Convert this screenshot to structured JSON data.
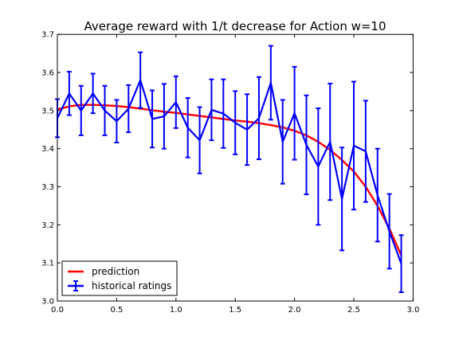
{
  "chart_data": {
    "type": "line",
    "title": "Average reward with 1/t decrease for Action w=10",
    "xlabel": "",
    "ylabel": "",
    "xlim": [
      0.0,
      3.0
    ],
    "ylim": [
      3.0,
      3.7
    ],
    "xticks": [
      0.0,
      0.5,
      1.0,
      1.5,
      2.0,
      2.5,
      3.0
    ],
    "xtick_labels": [
      "0.0",
      "0.5",
      "1.0",
      "1.5",
      "2.0",
      "2.5",
      "3.0"
    ],
    "yticks": [
      3.0,
      3.1,
      3.2,
      3.3,
      3.4,
      3.5,
      3.6,
      3.7
    ],
    "ytick_labels": [
      "3.0",
      "3.1",
      "3.2",
      "3.3",
      "3.4",
      "3.5",
      "3.6",
      "3.7"
    ],
    "grid": false,
    "legend_position": "bottom-left",
    "series": [
      {
        "name": "prediction",
        "kind": "line",
        "color": "#ff0000",
        "x": [
          0.0,
          0.1,
          0.2,
          0.3,
          0.4,
          0.5,
          0.6,
          0.7,
          0.8,
          0.9,
          1.0,
          1.1,
          1.2,
          1.3,
          1.4,
          1.5,
          1.6,
          1.7,
          1.8,
          1.9,
          2.0,
          2.1,
          2.2,
          2.3,
          2.4,
          2.5,
          2.6,
          2.7,
          2.8,
          2.9
        ],
        "y": [
          3.503,
          3.511,
          3.515,
          3.515,
          3.514,
          3.512,
          3.509,
          3.505,
          3.501,
          3.497,
          3.494,
          3.49,
          3.486,
          3.482,
          3.478,
          3.474,
          3.471,
          3.467,
          3.462,
          3.456,
          3.447,
          3.435,
          3.418,
          3.397,
          3.37,
          3.34,
          3.3,
          3.25,
          3.19,
          3.12
        ]
      },
      {
        "name": "historical ratings",
        "kind": "errorbar",
        "color": "#0000ff",
        "x": [
          0.0,
          0.1,
          0.2,
          0.3,
          0.4,
          0.5,
          0.6,
          0.7,
          0.8,
          0.9,
          1.0,
          1.1,
          1.2,
          1.3,
          1.4,
          1.5,
          1.6,
          1.7,
          1.8,
          1.9,
          2.0,
          2.1,
          2.2,
          2.3,
          2.4,
          2.5,
          2.6,
          2.7,
          2.8,
          2.9
        ],
        "y": [
          3.48,
          3.545,
          3.5,
          3.545,
          3.5,
          3.472,
          3.505,
          3.58,
          3.478,
          3.485,
          3.522,
          3.455,
          3.422,
          3.502,
          3.492,
          3.468,
          3.45,
          3.48,
          3.573,
          3.418,
          3.493,
          3.41,
          3.353,
          3.418,
          3.268,
          3.408,
          3.393,
          3.278,
          3.183,
          3.098
        ],
        "err": [
          0.05,
          0.057,
          0.065,
          0.052,
          0.065,
          0.056,
          0.062,
          0.073,
          0.075,
          0.085,
          0.068,
          0.078,
          0.087,
          0.08,
          0.09,
          0.083,
          0.093,
          0.108,
          0.097,
          0.11,
          0.122,
          0.13,
          0.153,
          0.153,
          0.135,
          0.168,
          0.133,
          0.122,
          0.098,
          0.075
        ]
      }
    ]
  },
  "legend": {
    "items": [
      {
        "label": "prediction",
        "color": "#ff0000",
        "kind": "line"
      },
      {
        "label": "historical ratings",
        "color": "#0000ff",
        "kind": "errorbar"
      }
    ]
  }
}
